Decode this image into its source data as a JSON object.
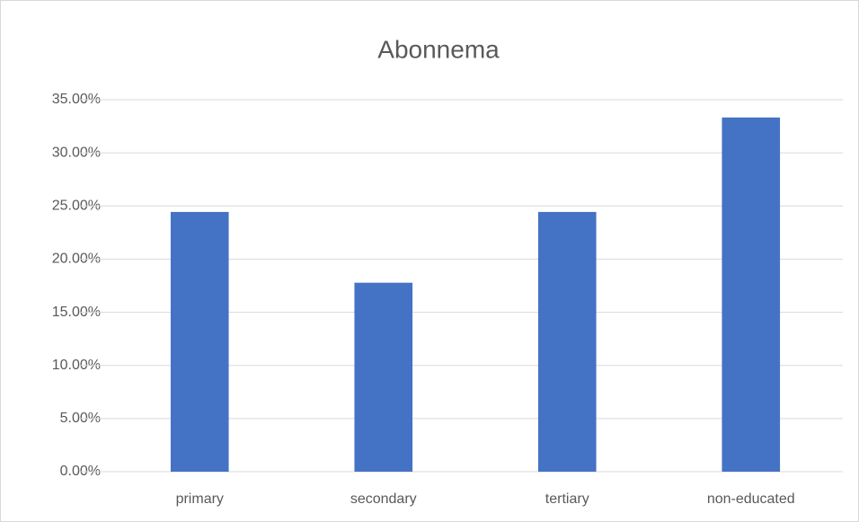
{
  "chart_data": {
    "type": "bar",
    "title": "Abonnema",
    "categories": [
      "primary",
      "secondary",
      "tertiary",
      "non-educated"
    ],
    "values": [
      24.44,
      17.78,
      24.44,
      33.33
    ],
    "color": "#4472c4",
    "ylim": [
      0,
      35
    ],
    "yticks": [
      {
        "value": 0,
        "label": "0.00%"
      },
      {
        "value": 5,
        "label": "5.00%"
      },
      {
        "value": 10,
        "label": "10.00%"
      },
      {
        "value": 15,
        "label": "15.00%"
      },
      {
        "value": 20,
        "label": "20.00%"
      },
      {
        "value": 25,
        "label": "25.00%"
      },
      {
        "value": 30,
        "label": "30.00%"
      },
      {
        "value": 35,
        "label": "35.00%"
      }
    ],
    "grid": true
  }
}
